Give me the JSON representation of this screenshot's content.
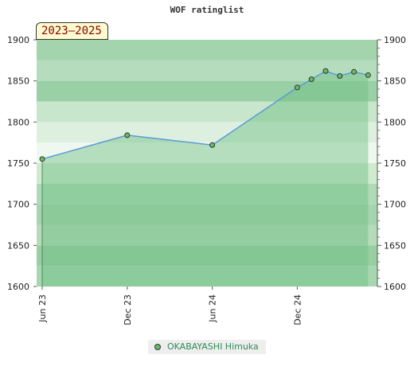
{
  "chart_data": {
    "type": "line",
    "title": "WOF ratinglist",
    "season_label": "2023–2025",
    "x_ticks": [
      "Jun 23",
      "Dec 23",
      "Jun 24",
      "Dec 24"
    ],
    "y_ticks": [
      1600,
      1650,
      1700,
      1750,
      1800,
      1850,
      1900
    ],
    "ylim": [
      1600,
      1900
    ],
    "series": [
      {
        "name": "OKABAYASHI Himuka",
        "points": [
          {
            "x": "2023-06",
            "y": 1755
          },
          {
            "x": "2023-12",
            "y": 1784
          },
          {
            "x": "2024-06",
            "y": 1772
          },
          {
            "x": "2024-12",
            "y": 1842
          },
          {
            "x": "2025-01",
            "y": 1852
          },
          {
            "x": "2025-02",
            "y": 1862
          },
          {
            "x": "2025-03",
            "y": 1856
          },
          {
            "x": "2025-04",
            "y": 1861
          },
          {
            "x": "2025-05",
            "y": 1857
          }
        ]
      }
    ],
    "colors": {
      "line": "#5b9bd5",
      "fill": "#6cbf82",
      "marker": "#66bb6a",
      "legend_text": "#2e8b57",
      "season_text": "#8b0000"
    }
  }
}
